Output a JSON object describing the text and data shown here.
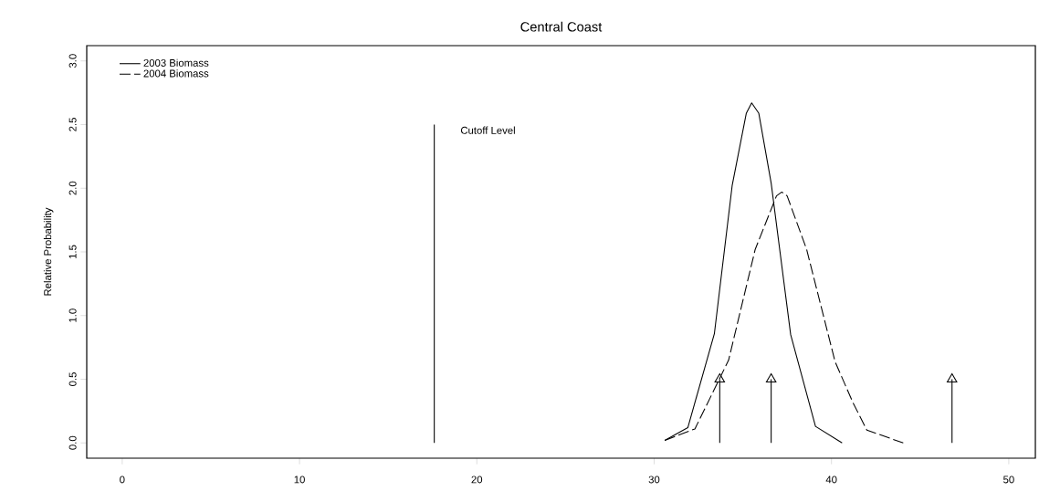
{
  "chart_data": {
    "type": "line",
    "title": "Central Coast",
    "ylabel": "Relative Probability",
    "xlim": [
      -2,
      51.5
    ],
    "ylim": [
      -0.12,
      3.12
    ],
    "xticks": [
      0,
      10,
      20,
      30,
      40,
      50
    ],
    "yticks": [
      {
        "value": 0,
        "label": "0.0"
      },
      {
        "value": 0.5,
        "label": "0.5"
      },
      {
        "value": 1,
        "label": "1.0"
      },
      {
        "value": 1.5,
        "label": "1.5"
      },
      {
        "value": 2,
        "label": "2.0"
      },
      {
        "value": 2.5,
        "label": "2.5"
      },
      {
        "value": 3,
        "label": "3.0"
      }
    ],
    "grid": false,
    "legend": "top left",
    "series": [
      {
        "name": "2003 Biomass",
        "color": "#000000",
        "line_style": "solid",
        "x": [
          30.6,
          31.9,
          33.4,
          34.4,
          35.2,
          35.5,
          35.9,
          36.6,
          37.7,
          39.1,
          40.6
        ],
        "values": [
          0.02,
          0.12,
          0.86,
          2.02,
          2.59,
          2.67,
          2.59,
          2.04,
          0.85,
          0.13,
          0.0
        ]
      },
      {
        "name": "2004 Biomass",
        "color": "#000000",
        "line_style": "dashed",
        "x": [
          30.6,
          32.3,
          34.2,
          35.7,
          36.9,
          37.2,
          37.5,
          38.6,
          40.2,
          41.2,
          42.0,
          44.05
        ],
        "values": [
          0.02,
          0.11,
          0.65,
          1.52,
          1.94,
          1.97,
          1.94,
          1.52,
          0.64,
          0.32,
          0.1,
          0.0
        ]
      },
      {
        "type": "line",
        "color": "#000000",
        "line_style": "solid",
        "x": [
          17.6,
          17.6
        ],
        "values": [
          0,
          2.5
        ]
      },
      {
        "type": "lollipop",
        "color": "#000000",
        "marker": "triangle",
        "x": [
          33.7,
          36.6,
          46.8
        ],
        "values": [
          0.5,
          0.5,
          0.5
        ]
      }
    ],
    "annotations": [
      {
        "text": "Cutoff Level",
        "x": 17.6,
        "y": 2.5
      }
    ]
  }
}
